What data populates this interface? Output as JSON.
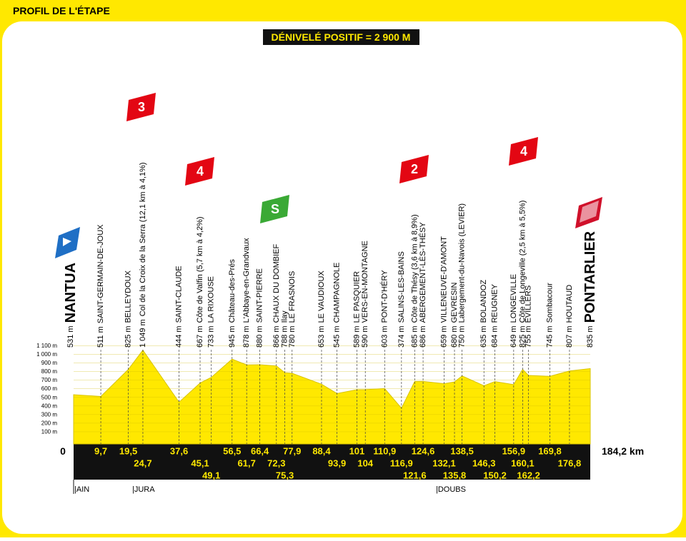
{
  "header": {
    "title": "PROFIL DE L'ÉTAPE"
  },
  "chart_data": {
    "type": "area",
    "subtitle": "DÉNIVELÉ POSITIF = 2 900 M",
    "x": [
      0,
      9.7,
      19.5,
      24.7,
      37.6,
      45.1,
      49.1,
      56.5,
      61.7,
      66.4,
      72.3,
      75.3,
      77.9,
      88.4,
      93.9,
      101,
      104,
      110.9,
      116.9,
      121.6,
      124.6,
      132.1,
      135.8,
      138.5,
      146.3,
      150.2,
      156.9,
      160.1,
      162.2,
      169.8,
      176.8,
      184.2
    ],
    "values": [
      531,
      511,
      825,
      1049,
      444,
      667,
      733,
      945,
      878,
      880,
      866,
      788,
      780,
      653,
      545,
      589,
      590,
      603,
      374,
      685,
      686,
      659,
      680,
      750,
      635,
      684,
      649,
      825,
      755,
      745,
      807,
      835
    ],
    "value_labels": [
      "531 m",
      "511 m",
      "825 m",
      "1 049 m",
      "444 m",
      "667 m",
      "733 m",
      "945 m",
      "878 m",
      "880 m",
      "866 m",
      "788 m",
      "780 m",
      "653 m",
      "545 m",
      "589 m",
      "590 m",
      "603 m",
      "374 m",
      "685 m",
      "686 m",
      "659 m",
      "680 m",
      "750 m",
      "635 m",
      "684 m",
      "649 m",
      "825 m",
      "755 m",
      "745 m",
      "807 m",
      "835 m"
    ],
    "names": [
      "NANTUA",
      "SAINT-GERMAIN-DE-JOUX",
      "BELLEYDOUX",
      "Col de la Croix de la Serra (12,1 km à 4,1%)",
      "SAINT-CLAUDE",
      "Côte de Valfin (5,7 km à 4,2%)",
      "LA RIXOUSE",
      "Château-des-Prés",
      "L'Abbaye-en-Grandvaux",
      "SAINT-PIERRE",
      "CHAUX DU DOMBIEF",
      "Ilay",
      "LE FRASNOIS",
      "LE VAUDIOUX",
      "CHAMPAGNOLE",
      "LE PASQUIER",
      "VERS-EN-MONTAGNE",
      "PONT-D'HÉRY",
      "SALINS-LES-BAINS",
      "Côte de Thésy (3,6 km à 8,9%)",
      "ABERGEMENT-LÈS-THÉSY",
      "VILLENEUVE-D'AMONT",
      "GEVRESIN",
      "Labergement-du-Navois (LEVIER)",
      "BOLANDOZ",
      "REUGNEY",
      "LONGEVILLE",
      "Côte de Longeville (2,5 km à 5,5%)",
      "ÉVILLERS",
      "Sombacour",
      "HOUTAUD",
      "PONTARLIER"
    ],
    "color": "#ffe800",
    "xlim": [
      0,
      184.2
    ],
    "ylim": [
      0,
      1100
    ],
    "xticks": [
      0,
      {
        "value": 9.7,
        "label": "9,7"
      },
      {
        "value": 19.5,
        "label": "19,5"
      },
      {
        "value": 24.7,
        "label": "24,7"
      },
      {
        "value": 37.6,
        "label": "37,6"
      },
      {
        "value": 45.1,
        "label": "45,1"
      },
      {
        "value": 49.1,
        "label": "49,1"
      },
      {
        "value": 56.5,
        "label": "56,5"
      },
      {
        "value": 61.7,
        "label": "61,7"
      },
      {
        "value": 66.4,
        "label": "66,4"
      },
      {
        "value": 72.3,
        "label": "72,3"
      },
      {
        "value": 75.3,
        "label": "75,3"
      },
      {
        "value": 77.9,
        "label": "77,9"
      },
      {
        "value": 88.4,
        "label": "88,4"
      },
      {
        "value": 93.9,
        "label": "93,9"
      },
      101,
      104,
      {
        "value": 110.9,
        "label": "110,9"
      },
      {
        "value": 116.9,
        "label": "116,9"
      },
      {
        "value": 121.6,
        "label": "121,6"
      },
      {
        "value": 124.6,
        "label": "124,6"
      },
      {
        "value": 132.1,
        "label": "132,1"
      },
      {
        "value": 135.8,
        "label": "135,8"
      },
      {
        "value": 138.5,
        "label": "138,5"
      },
      {
        "value": 146.3,
        "label": "146,3"
      },
      {
        "value": 150.2,
        "label": "150,2"
      },
      {
        "value": 156.9,
        "label": "156,9"
      },
      {
        "value": 160.1,
        "label": "160,1"
      },
      {
        "value": 162.2,
        "label": "162,2"
      },
      {
        "value": 169.8,
        "label": "169,8"
      },
      {
        "value": 176.8,
        "label": "176,8"
      },
      {
        "value": 184.2,
        "label": "184,2 km"
      }
    ],
    "yticks": [
      {
        "value": 100,
        "label": "100 m"
      },
      {
        "value": 200,
        "label": "200 m"
      },
      {
        "value": 300,
        "label": "300 m"
      },
      {
        "value": 400,
        "label": "400 m"
      },
      {
        "value": 500,
        "label": "500 m"
      },
      {
        "value": 600,
        "label": "600 m"
      },
      {
        "value": 700,
        "label": "700 m"
      },
      {
        "value": 800,
        "label": "800 m"
      },
      {
        "value": 900,
        "label": "900 m"
      },
      {
        "value": 1000,
        "label": "1 000 m"
      },
      {
        "value": 1100,
        "label": "1 100 m"
      }
    ],
    "badges": [
      "3",
      "4",
      "S",
      "2",
      "4"
    ],
    "regions": [
      "|AIN",
      "|JURA",
      "|DOUBS"
    ]
  }
}
